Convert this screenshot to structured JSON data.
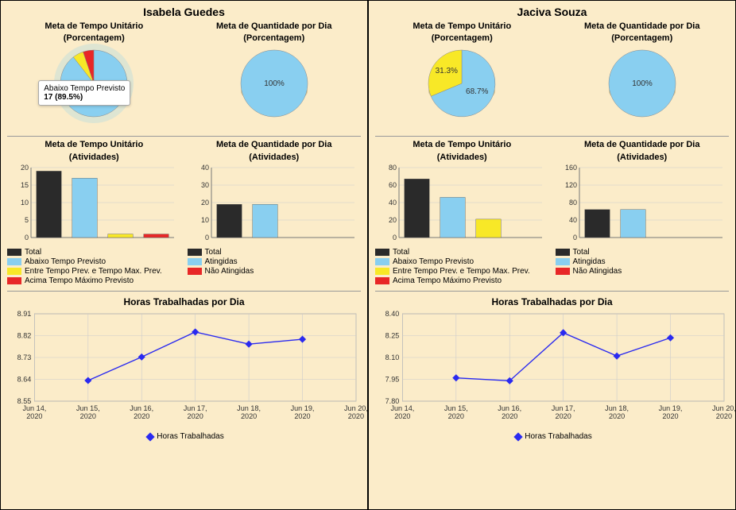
{
  "colors": {
    "bg": "#fbecc9",
    "black": "#2a2a2a",
    "blue": "#89cff0",
    "blueLine": "#2a2af0",
    "yellow": "#f8e827",
    "red": "#e82727",
    "grid": "#cccccc",
    "pieShadow": "#d9c89a"
  },
  "panels": [
    {
      "name": "Isabela Guedes",
      "pie1": {
        "title_l1": "Meta de Tempo Unitário",
        "title_l2": "(Porcentagem)",
        "slices": [
          {
            "value": 89.5,
            "color": "#89cff0"
          },
          {
            "value": 5.3,
            "color": "#f8e827"
          },
          {
            "value": 5.2,
            "color": "#e82727"
          }
        ],
        "tooltip": {
          "line1": "Abaixo Tempo Previsto",
          "line2": "17 (89.5%)",
          "show": true
        },
        "highlight": true
      },
      "pie2": {
        "title_l1": "Meta de Quantidade por Dia",
        "title_l2": "(Porcentagem)",
        "slices": [
          {
            "value": 100,
            "color": "#89cff0"
          }
        ],
        "centerLabel": "100%"
      },
      "bar1": {
        "title_l1": "Meta de Tempo Unitário",
        "title_l2": "(Atividades)",
        "ymax": 20,
        "ystep": 5,
        "bars": [
          {
            "value": 19,
            "color": "#2a2a2a"
          },
          {
            "value": 17,
            "color": "#89cff0"
          },
          {
            "value": 1,
            "color": "#f8e827"
          },
          {
            "value": 1,
            "color": "#e82727"
          }
        ]
      },
      "bar2": {
        "title_l1": "Meta de Quantidade por Dia",
        "title_l2": "(Atividades)",
        "ymax": 40,
        "ystep": 10,
        "bars": [
          {
            "value": 19,
            "color": "#2a2a2a"
          },
          {
            "value": 19,
            "color": "#89cff0"
          }
        ]
      },
      "legendLeft": [
        {
          "label": "Total",
          "color": "#2a2a2a"
        },
        {
          "label": "Abaixo Tempo Previsto",
          "color": "#89cff0"
        },
        {
          "label": "Entre Tempo Prev. e Tempo Max. Prev.",
          "color": "#f8e827"
        },
        {
          "label": "Acima Tempo Máximo Previsto",
          "color": "#e82727"
        }
      ],
      "legendRight": [
        {
          "label": "Total",
          "color": "#2a2a2a"
        },
        {
          "label": "Atingidas",
          "color": "#89cff0"
        },
        {
          "label": "Não Atingidas",
          "color": "#e82727"
        }
      ],
      "line": {
        "title": "Horas Trabalhadas por Dia",
        "ymin": 8.55,
        "ymax": 8.91,
        "ystep": 0.09,
        "xlabels": [
          "Jun 14, 2020",
          "Jun 15, 2020",
          "Jun 16, 2020",
          "Jun 17, 2020",
          "Jun 18, 2020",
          "Jun 19, 2020",
          "Jun 20, 2020"
        ],
        "points": [
          {
            "xi": 1,
            "y": 8.635
          },
          {
            "xi": 2,
            "y": 8.732
          },
          {
            "xi": 3,
            "y": 8.835
          },
          {
            "xi": 4,
            "y": 8.785
          },
          {
            "xi": 5,
            "y": 8.805
          }
        ],
        "legendLabel": "Horas Trabalhadas"
      }
    },
    {
      "name": "Jaciva Souza",
      "pie1": {
        "title_l1": "Meta de Tempo Unitário",
        "title_l2": "(Porcentagem)",
        "slices": [
          {
            "value": 68.7,
            "color": "#89cff0",
            "label": "68.7%"
          },
          {
            "value": 31.3,
            "color": "#f8e827",
            "label": "31.3%"
          }
        ]
      },
      "pie2": {
        "title_l1": "Meta de Quantidade por Dia",
        "title_l2": "(Porcentagem)",
        "slices": [
          {
            "value": 100,
            "color": "#89cff0"
          }
        ],
        "centerLabel": "100%"
      },
      "bar1": {
        "title_l1": "Meta de Tempo Unitário",
        "title_l2": "(Atividades)",
        "ymax": 80,
        "ystep": 20,
        "bars": [
          {
            "value": 67,
            "color": "#2a2a2a"
          },
          {
            "value": 46,
            "color": "#89cff0"
          },
          {
            "value": 21,
            "color": "#f8e827"
          }
        ]
      },
      "bar2": {
        "title_l1": "Meta de Quantidade por Dia",
        "title_l2": "(Atividades)",
        "ymax": 160,
        "ystep": 40,
        "bars": [
          {
            "value": 64,
            "color": "#2a2a2a"
          },
          {
            "value": 64,
            "color": "#89cff0"
          }
        ]
      },
      "legendLeft": [
        {
          "label": "Total",
          "color": "#2a2a2a"
        },
        {
          "label": "Abaixo Tempo Previsto",
          "color": "#89cff0"
        },
        {
          "label": "Entre Tempo Prev. e Tempo Max. Prev.",
          "color": "#f8e827"
        },
        {
          "label": "Acima Tempo Máximo Previsto",
          "color": "#e82727"
        }
      ],
      "legendRight": [
        {
          "label": "Total",
          "color": "#2a2a2a"
        },
        {
          "label": "Atingidas",
          "color": "#89cff0"
        },
        {
          "label": "Não Atingidas",
          "color": "#e82727"
        }
      ],
      "line": {
        "title": "Horas Trabalhadas por Dia",
        "ymin": 7.8,
        "ymax": 8.4,
        "ystep": 0.15,
        "xlabels": [
          "Jun 14, 2020",
          "Jun 15, 2020",
          "Jun 16, 2020",
          "Jun 17, 2020",
          "Jun 18, 2020",
          "Jun 19, 2020",
          "Jun 20, 2020"
        ],
        "points": [
          {
            "xi": 1,
            "y": 7.96
          },
          {
            "xi": 2,
            "y": 7.94
          },
          {
            "xi": 3,
            "y": 8.27
          },
          {
            "xi": 4,
            "y": 8.11
          },
          {
            "xi": 5,
            "y": 8.235
          }
        ],
        "legendLabel": "Horas Trabalhadas"
      }
    }
  ]
}
